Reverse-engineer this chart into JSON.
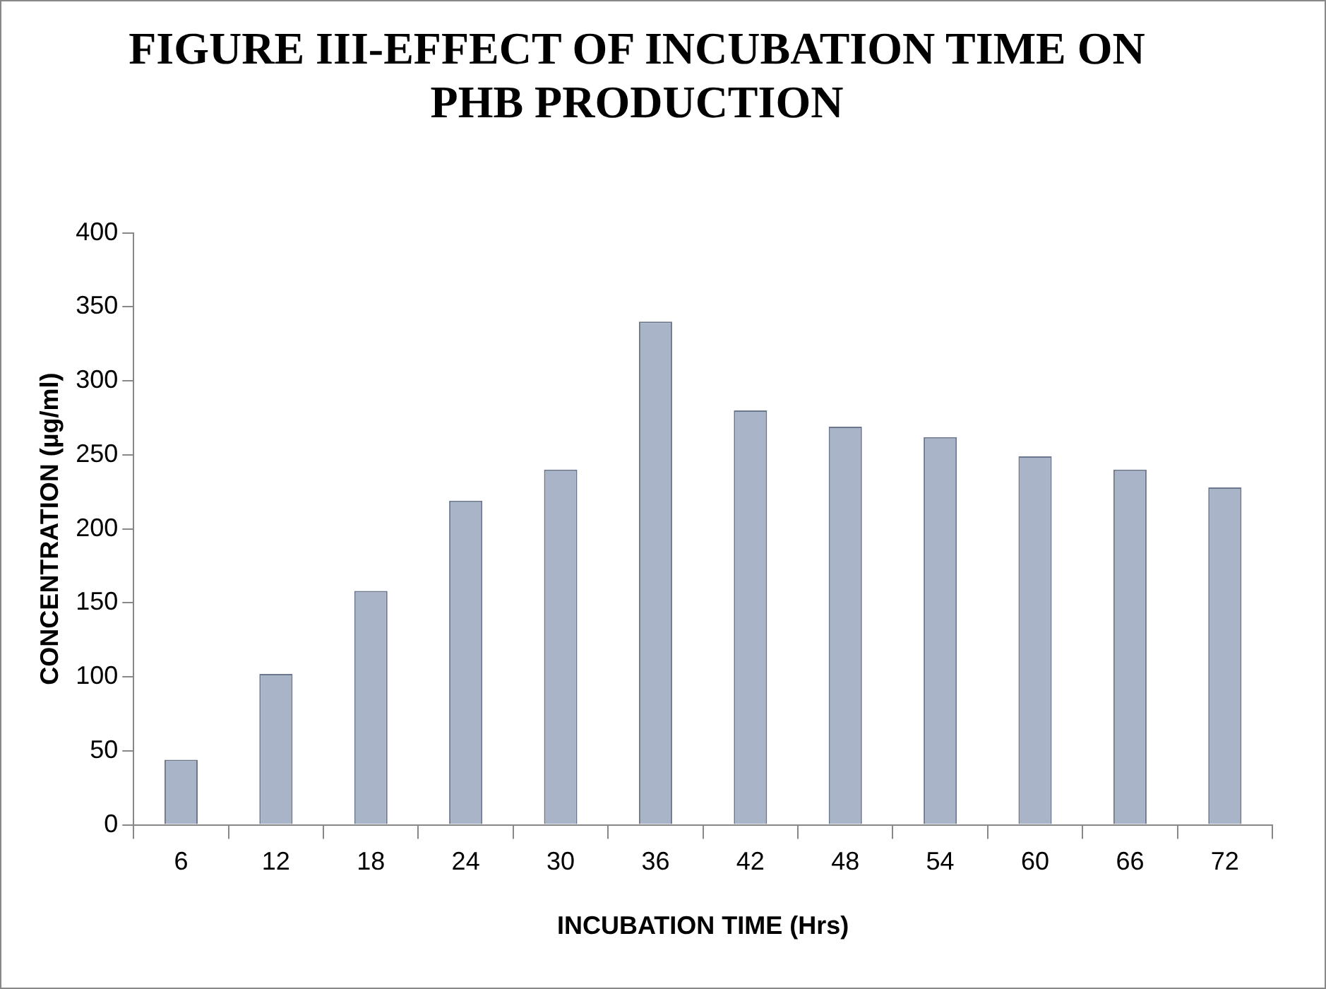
{
  "chart_data": {
    "type": "bar",
    "title": "FIGURE III-EFFECT OF INCUBATION TIME  ON PHB PRODUCTION",
    "xlabel": "INCUBATION TIME (Hrs)",
    "ylabel": "CONCENTRATION (µg/ml)",
    "categories": [
      "6",
      "12",
      "18",
      "24",
      "30",
      "36",
      "42",
      "48",
      "54",
      "60",
      "66",
      "72"
    ],
    "values": [
      44,
      102,
      158,
      219,
      240,
      340,
      280,
      269,
      262,
      249,
      240,
      228
    ],
    "color": "#a9b4c8",
    "ylim": [
      0,
      400
    ],
    "yticks": [
      0,
      50,
      100,
      150,
      200,
      250,
      300,
      350,
      400
    ],
    "grid": false,
    "legend": false
  }
}
